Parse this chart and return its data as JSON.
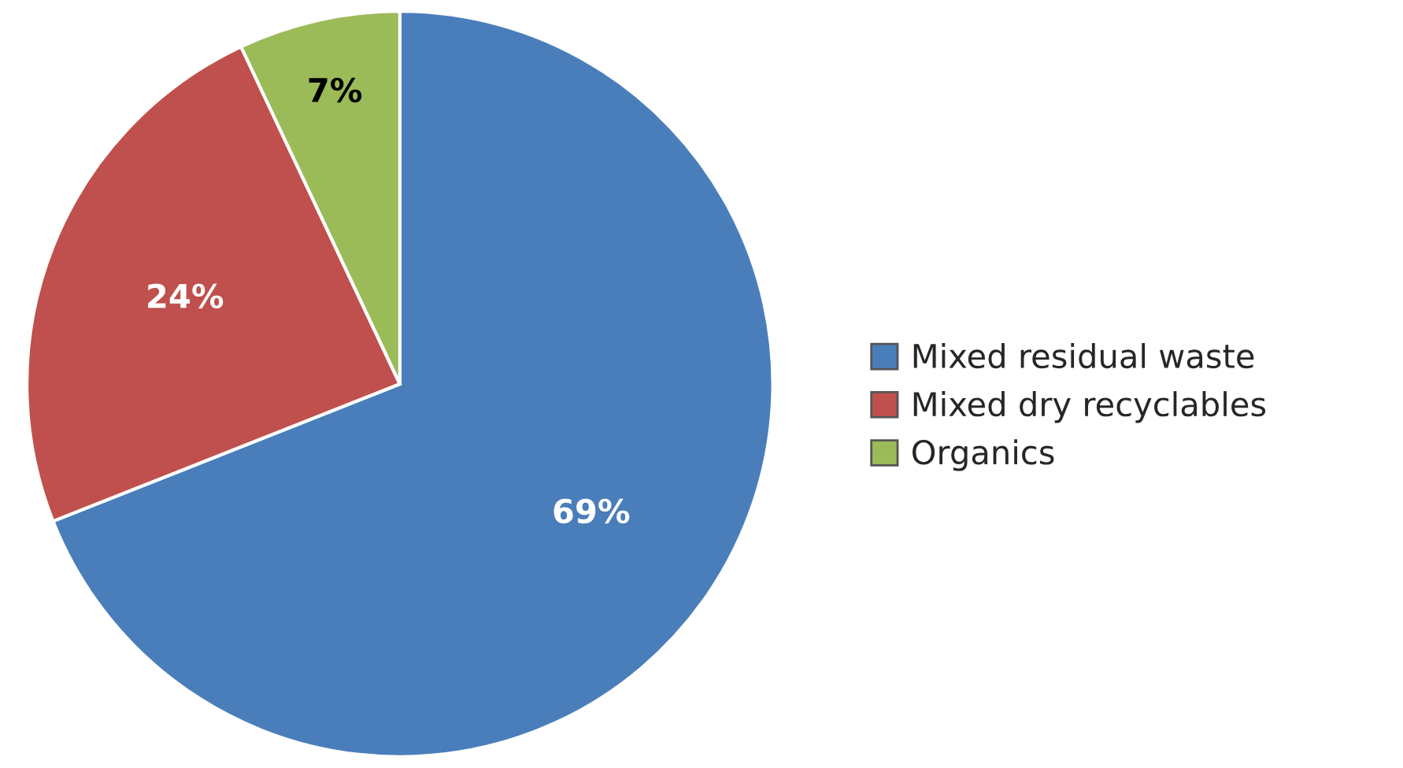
{
  "chart_data": {
    "type": "pie",
    "categories": [
      "Mixed residual waste",
      "Mixed dry recyclables",
      "Organics"
    ],
    "values": [
      69,
      24,
      7
    ],
    "colors": [
      "#4a7ebb",
      "#c0504d",
      "#9bbb59"
    ],
    "value_labels": [
      "69%",
      "24%",
      "7%"
    ],
    "legend": "right"
  }
}
